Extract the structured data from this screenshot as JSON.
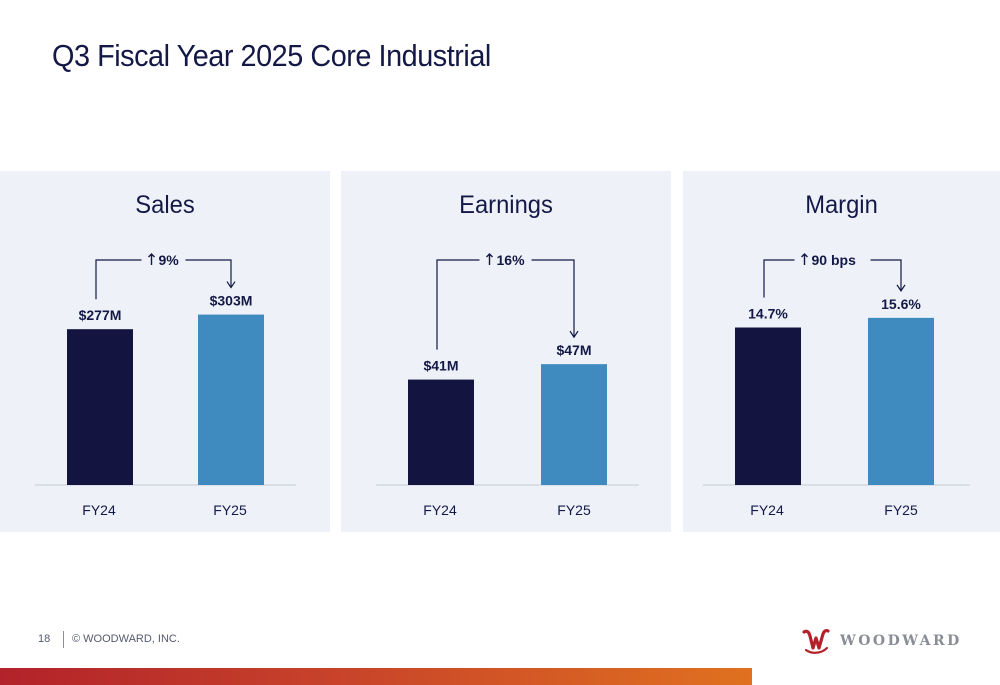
{
  "page": {
    "title": "Q3 Fiscal Year 2025 Core Industrial",
    "page_number": "18",
    "copyright": "© WOODWARD, INC.",
    "brand": "WOODWARD"
  },
  "colors": {
    "fy24": "#13143f",
    "fy25": "#3f8abf",
    "panel_bg": "#eef2f8",
    "text": "#141846",
    "accent_bar_start": "#b2222a",
    "accent_bar_end": "#e0711f"
  },
  "chart_data": [
    {
      "type": "bar",
      "title": "Sales",
      "categories": [
        "FY24",
        "FY25"
      ],
      "values": [
        277,
        303
      ],
      "value_labels": [
        "$277M",
        "$303M"
      ],
      "change_label": "9%",
      "ylim": [
        0,
        320
      ]
    },
    {
      "type": "bar",
      "title": "Earnings",
      "categories": [
        "FY24",
        "FY25"
      ],
      "values": [
        41,
        47
      ],
      "value_labels": [
        "$41M",
        "$47M"
      ],
      "change_label": "16%",
      "ylim": [
        0,
        70
      ]
    },
    {
      "type": "bar",
      "title": "Margin",
      "categories": [
        "FY24",
        "FY25"
      ],
      "values": [
        14.7,
        15.6
      ],
      "value_labels": [
        "14.7%",
        "15.6%"
      ],
      "change_label": "90 bps",
      "ylim": [
        0,
        16.8
      ]
    }
  ]
}
